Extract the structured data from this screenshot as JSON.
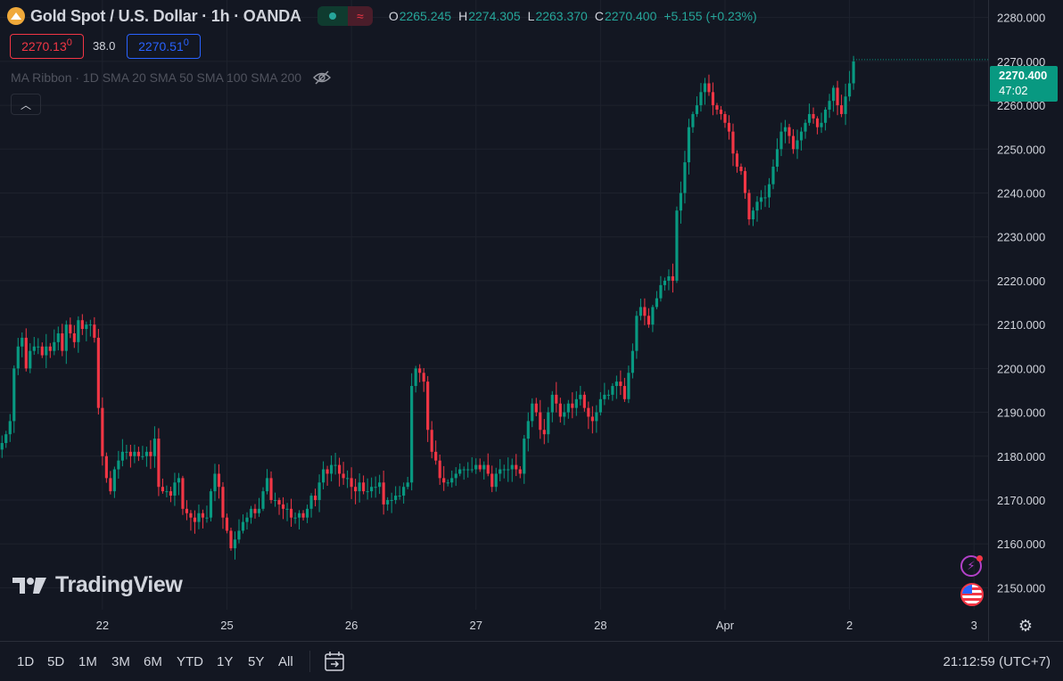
{
  "header": {
    "symbol": "Gold Spot / U.S. Dollar · 1h · OANDA",
    "market_status": "open",
    "ohlc": [
      {
        "label": "O",
        "value": "2265.245"
      },
      {
        "label": "H",
        "value": "2274.305"
      },
      {
        "label": "L",
        "value": "2263.370"
      },
      {
        "label": "C",
        "value": "2270.400"
      }
    ],
    "change": "+5.155 (+0.23%)"
  },
  "trade": {
    "sell_main": "2270.13",
    "sell_small": "0",
    "spread": "38.0",
    "buy_main": "2270.51",
    "buy_small": "0"
  },
  "indicator": {
    "label": "MA Ribbon · 1D SMA 20 SMA 50 SMA 100 SMA 200",
    "visibility_icon": "eye-crossed-icon"
  },
  "last_price": {
    "price": "2270.400",
    "countdown": "47:02"
  },
  "branding": {
    "logo_text": "TradingView"
  },
  "timeframes": [
    "1D",
    "5D",
    "1M",
    "3M",
    "6M",
    "YTD",
    "1Y",
    "5Y",
    "All"
  ],
  "clock": "21:12:59 (UTC+7)",
  "colors": {
    "background": "#131722",
    "up": "#089981",
    "down": "#f23645",
    "grid": "#1e222d",
    "text": "#d1d4dc",
    "buy": "#2962ff"
  },
  "chart_data": {
    "type": "candlestick",
    "title": "Gold Spot / U.S. Dollar · 1h · OANDA",
    "ylim": [
      2145,
      2284
    ],
    "yticks": [
      "2150.000",
      "2160.000",
      "2170.000",
      "2180.000",
      "2190.000",
      "2200.000",
      "2210.000",
      "2220.000",
      "2230.000",
      "2240.000",
      "2250.000",
      "2260.000",
      "2270.000",
      "2280.000"
    ],
    "xticks": [
      {
        "label": "22",
        "index": 25
      },
      {
        "label": "25",
        "index": 56
      },
      {
        "label": "26",
        "index": 87
      },
      {
        "label": "27",
        "index": 118
      },
      {
        "label": "28",
        "index": 149
      },
      {
        "label": "Apr",
        "index": 180
      },
      {
        "label": "2",
        "index": 211
      },
      {
        "label": "3",
        "index": 242
      }
    ],
    "visible_bar_count": 246,
    "grid": true,
    "closes": [
      2183,
      2185,
      2188,
      2200,
      2205,
      2207,
      2200,
      2204,
      2205,
      2205,
      2203,
      2205,
      2204,
      2206,
      2208,
      2204,
      2210,
      2208,
      2206,
      2211,
      2209,
      2210,
      2210,
      2207,
      2191,
      2180,
      2175,
      2172,
      2177,
      2179,
      2181,
      2181,
      2180,
      2181,
      2180,
      2180,
      2181,
      2180,
      2184,
      2173,
      2172,
      2172,
      2171,
      2174,
      2175,
      2168,
      2167,
      2166,
      2165,
      2167,
      2166,
      2166,
      2172,
      2176,
      2173,
      2166,
      2163,
      2159,
      2161,
      2163,
      2165,
      2166,
      2168,
      2167,
      2168,
      2172,
      2175,
      2170,
      2170,
      2169,
      2168,
      2168,
      2166,
      2166,
      2167,
      2166,
      2168,
      2171,
      2170,
      2174,
      2177,
      2176,
      2178,
      2178,
      2176,
      2175,
      2175,
      2173,
      2172,
      2174,
      2172,
      2172,
      2173,
      2173,
      2174,
      2169,
      2170,
      2170,
      2171,
      2171,
      2173,
      2174,
      2196,
      2200,
      2199,
      2197,
      2186,
      2181,
      2179,
      2175,
      2174,
      2174,
      2175,
      2176,
      2177,
      2177,
      2177,
      2177,
      2178,
      2177,
      2178,
      2176,
      2173,
      2176,
      2177,
      2177,
      2177,
      2178,
      2177,
      2176,
      2184,
      2188,
      2192,
      2190,
      2186,
      2185,
      2190,
      2194,
      2192,
      2189,
      2190,
      2192,
      2191,
      2193,
      2194,
      2191,
      2189,
      2188,
      2190,
      2193,
      2194,
      2194,
      2196,
      2197,
      2196,
      2193,
      2199,
      2204,
      2212,
      2214,
      2212,
      2210,
      2214,
      2216,
      2219,
      2220,
      2221,
      2220,
      2236,
      2240,
      2247,
      2255,
      2258,
      2260,
      2263,
      2265,
      2263,
      2260,
      2259,
      2258,
      2256,
      2254,
      2249,
      2246,
      2245,
      2240,
      2234,
      2236,
      2238,
      2239,
      2239,
      2242,
      2246,
      2250,
      2254,
      2255,
      2253,
      2250,
      2252,
      2254,
      2256,
      2258,
      2257,
      2255,
      2256,
      2259,
      2261,
      2264,
      2260,
      2258,
      2262,
      2265,
      2270
    ]
  }
}
